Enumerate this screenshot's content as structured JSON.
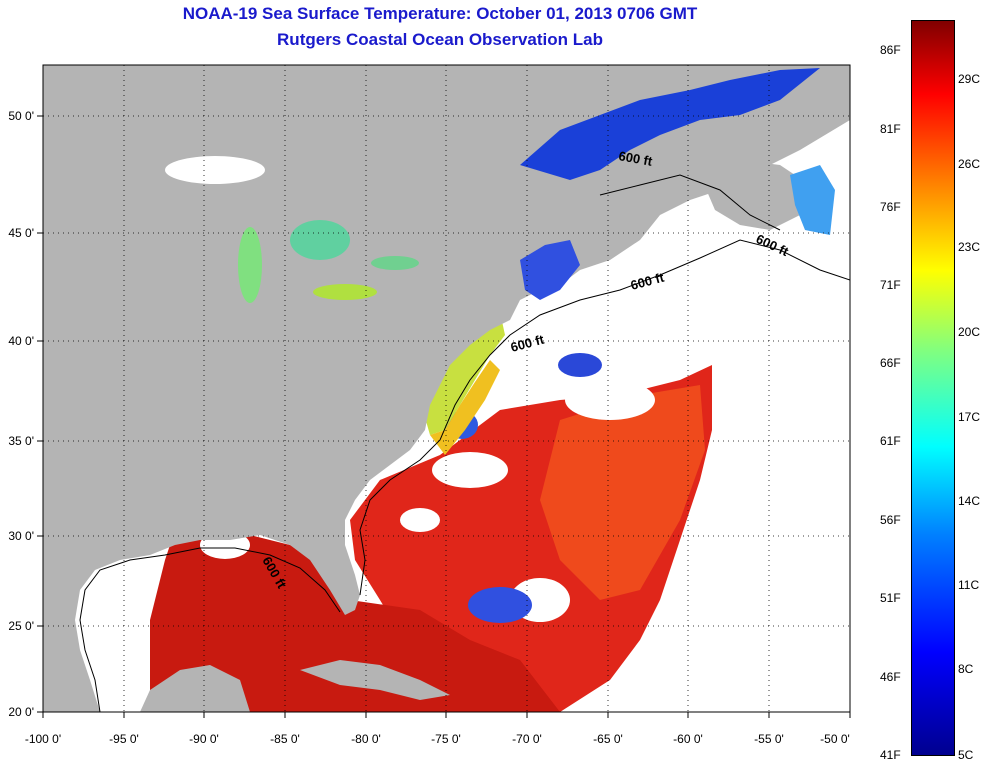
{
  "title": {
    "line1": "NOAA-19 Sea Surface Temperature:  October 01, 2013 0706 GMT",
    "line2": "Rutgers Coastal Ocean Observation Lab"
  },
  "map": {
    "lat_labels": [
      "50 0'",
      "45 0'",
      "40 0'",
      "35 0'",
      "30 0'",
      "25 0'",
      "20 0'"
    ],
    "lon_labels": [
      "-100 0'",
      "-95 0'",
      "-90 0'",
      "-85 0'",
      "-80 0'",
      "-75 0'",
      "-70 0'",
      "-65 0'",
      "-60 0'",
      "-55 0'",
      "-50 0'"
    ],
    "lat_range": [
      20,
      52.5
    ],
    "lon_range": [
      -100,
      -50
    ],
    "isobath_labels": [
      "600 ft",
      "600 ft",
      "600 ft",
      "600 ft",
      "600 ft"
    ],
    "colors": {
      "land": "#b4b4b4",
      "cloud": "#ffffff",
      "warm": "#e0261a",
      "cool": "#3050e0"
    }
  },
  "colorbar": {
    "fahrenheit": [
      "86F",
      "81F",
      "76F",
      "71F",
      "66F",
      "61F",
      "56F",
      "51F",
      "46F",
      "41F"
    ],
    "celsius": [
      "29C",
      "26C",
      "23C",
      "20C",
      "17C",
      "14C",
      "11C",
      "8C",
      "5C"
    ]
  }
}
